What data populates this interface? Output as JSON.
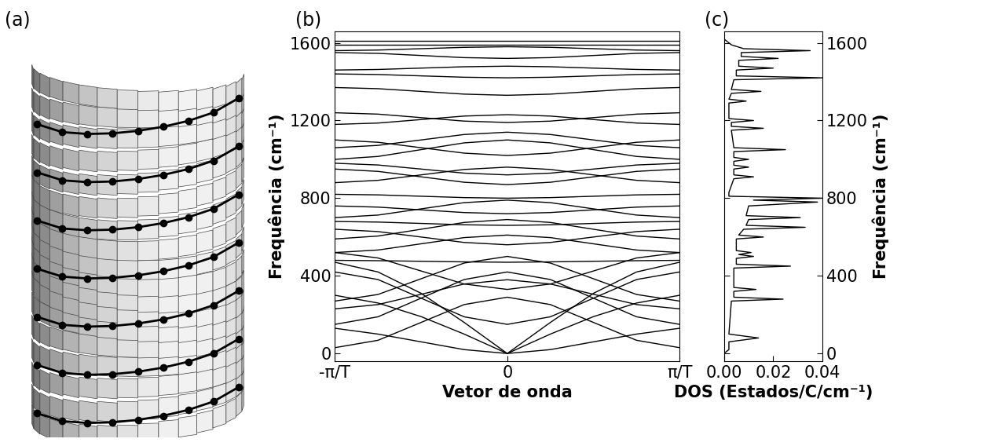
{
  "chart_data": [
    {
      "type": "image",
      "title": "(a)"
    },
    {
      "type": "line",
      "title": "(b)",
      "x_label": "Vetor de onda",
      "y_label": "Frequência (cm⁻¹)",
      "color": "#000000",
      "x": [
        -1,
        -0.75,
        -0.5,
        -0.25,
        0,
        0.25,
        0.5,
        0.75,
        1
      ],
      "xlim": [
        -1,
        1
      ],
      "xticks": [
        {
          "value": -1,
          "label": "-π/T"
        },
        0,
        {
          "value": 1,
          "label": "π/T"
        }
      ],
      "ylim": [
        -40,
        1660
      ],
      "yticks": [
        0,
        400,
        800,
        1200,
        1600
      ],
      "series": [
        {
          "values": [
            300,
            260,
            190,
            100,
            0,
            100,
            190,
            260,
            300
          ]
        },
        {
          "values": [
            470,
            420,
            310,
            160,
            0,
            160,
            310,
            420,
            470
          ]
        },
        {
          "values": [
            130,
            100,
            60,
            20,
            0,
            20,
            60,
            100,
            130
          ]
        },
        {
          "values": [
            30,
            68,
            160,
            252,
            290,
            252,
            160,
            68,
            30
          ]
        },
        {
          "values": [
            420,
            381,
            285,
            189,
            150,
            189,
            285,
            381,
            420
          ]
        },
        {
          "values": [
            150,
            189,
            285,
            381,
            420,
            381,
            285,
            189,
            150
          ]
        },
        {
          "values": [
            270,
            304,
            385,
            466,
            500,
            466,
            385,
            304,
            270
          ]
        },
        {
          "values": [
            520,
            492,
            425,
            358,
            330,
            358,
            425,
            492,
            520
          ]
        },
        {
          "values": [
            230,
            252,
            305,
            358,
            380,
            358,
            305,
            252,
            230
          ]
        },
        {
          "values": [
            480,
            478,
            475,
            472,
            470,
            472,
            475,
            478,
            480
          ]
        },
        {
          "values": [
            640,
            628,
            600,
            572,
            560,
            572,
            600,
            628,
            640
          ]
        },
        {
          "values": [
            520,
            533,
            565,
            597,
            610,
            597,
            565,
            533,
            520
          ]
        },
        {
          "values": [
            590,
            605,
            640,
            675,
            690,
            675,
            640,
            605,
            590
          ]
        },
        {
          "values": [
            680,
            677,
            670,
            663,
            660,
            663,
            670,
            677,
            680
          ]
        },
        {
          "values": [
            760,
            754,
            740,
            726,
            720,
            726,
            740,
            754,
            760
          ]
        },
        {
          "values": [
            700,
            713,
            745,
            777,
            790,
            777,
            745,
            713,
            700
          ]
        },
        {
          "values": [
            820,
            817,
            810,
            803,
            800,
            803,
            810,
            817,
            820
          ]
        },
        {
          "values": [
            950,
            938,
            910,
            882,
            870,
            882,
            910,
            938,
            950
          ]
        },
        {
          "values": [
            880,
            892,
            920,
            948,
            960,
            948,
            920,
            892,
            880
          ]
        },
        {
          "values": [
            980,
            971,
            950,
            929,
            920,
            929,
            950,
            971,
            980
          ]
        },
        {
          "values": [
            1100,
            1088,
            1060,
            1032,
            1020,
            1032,
            1060,
            1088,
            1100
          ]
        },
        {
          "values": [
            1000,
            1015,
            1050,
            1085,
            1100,
            1085,
            1050,
            1015,
            1000
          ]
        },
        {
          "values": [
            1060,
            1072,
            1100,
            1128,
            1140,
            1128,
            1100,
            1072,
            1060
          ]
        },
        {
          "values": [
            1240,
            1233,
            1215,
            1197,
            1190,
            1197,
            1215,
            1233,
            1240
          ]
        },
        {
          "values": [
            1180,
            1187,
            1205,
            1223,
            1230,
            1223,
            1205,
            1187,
            1180
          ]
        },
        {
          "values": [
            1370,
            1364,
            1350,
            1336,
            1330,
            1336,
            1350,
            1364,
            1370
          ]
        },
        {
          "values": [
            1440,
            1437,
            1430,
            1423,
            1420,
            1423,
            1430,
            1437,
            1440
          ]
        },
        {
          "values": [
            1460,
            1463,
            1470,
            1477,
            1480,
            1477,
            1470,
            1463,
            1460
          ]
        },
        {
          "values": [
            1550,
            1546,
            1535,
            1524,
            1520,
            1524,
            1535,
            1546,
            1550
          ]
        },
        {
          "values": [
            1560,
            1563,
            1570,
            1577,
            1580,
            1577,
            1570,
            1563,
            1560
          ]
        },
        {
          "values": [
            1590,
            1590,
            1590,
            1590,
            1590,
            1590,
            1590,
            1590,
            1590
          ]
        },
        {
          "values": [
            1610,
            1610,
            1610,
            1610,
            1610,
            1610,
            1610,
            1610,
            1610
          ]
        }
      ]
    },
    {
      "type": "line",
      "title": "(c)",
      "orientation": "horizontal",
      "x_label": "DOS (Estados/C/cm⁻¹)",
      "y_label": "Frequência (cm⁻¹)",
      "color": "#000000",
      "y": [
        0,
        10,
        20,
        60,
        80,
        100,
        270,
        280,
        290,
        320,
        330,
        340,
        440,
        450,
        460,
        490,
        500,
        510,
        520,
        530,
        590,
        600,
        610,
        640,
        650,
        660,
        690,
        700,
        710,
        760,
        780,
        790,
        800,
        810,
        830,
        900,
        910,
        920,
        950,
        960,
        970,
        990,
        1000,
        1010,
        1040,
        1050,
        1060,
        1150,
        1160,
        1170,
        1190,
        1200,
        1210,
        1290,
        1300,
        1310,
        1340,
        1350,
        1360,
        1410,
        1420,
        1430,
        1460,
        1470,
        1480,
        1510,
        1520,
        1530,
        1550,
        1560,
        1570,
        1590,
        1600,
        1620
      ],
      "values": [
        0.0,
        0.001,
        0.002,
        0.002,
        0.014,
        0.002,
        0.003,
        0.024,
        0.004,
        0.004,
        0.013,
        0.004,
        0.004,
        0.027,
        0.005,
        0.005,
        0.012,
        0.006,
        0.011,
        0.005,
        0.005,
        0.016,
        0.006,
        0.008,
        0.033,
        0.009,
        0.01,
        0.031,
        0.009,
        0.01,
        0.038,
        0.012,
        0.04,
        0.002,
        0.002,
        0.004,
        0.012,
        0.004,
        0.004,
        0.01,
        0.004,
        0.004,
        0.01,
        0.004,
        0.004,
        0.025,
        0.004,
        0.003,
        0.016,
        0.003,
        0.003,
        0.012,
        0.002,
        0.002,
        0.009,
        0.002,
        0.003,
        0.015,
        0.003,
        0.004,
        0.04,
        0.005,
        0.005,
        0.02,
        0.006,
        0.006,
        0.022,
        0.007,
        0.007,
        0.035,
        0.008,
        0.003,
        0.002,
        0.0
      ],
      "xlim": [
        0,
        0.04
      ],
      "xticks": [
        {
          "value": 0,
          "label": "0.00"
        },
        {
          "value": 0.02,
          "label": "0.02"
        },
        {
          "value": 0.04,
          "label": "0.04"
        }
      ],
      "ylim": [
        -40,
        1660
      ],
      "yticks": [
        0,
        400,
        800,
        1200,
        1600
      ]
    }
  ]
}
